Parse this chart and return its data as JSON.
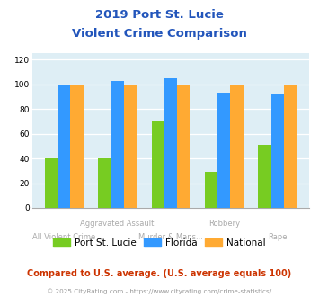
{
  "title_line1": "2019 Port St. Lucie",
  "title_line2": "Violent Crime Comparison",
  "cat_labels_row1": [
    "",
    "Aggravated Assault",
    "",
    "Robbery",
    ""
  ],
  "cat_labels_row2": [
    "All Violent Crime",
    "",
    "Murder & Mans...",
    "",
    "Rape"
  ],
  "psl_values": [
    40,
    40,
    70,
    29,
    51
  ],
  "florida_values": [
    100,
    103,
    105,
    93,
    92
  ],
  "national_values": [
    100,
    100,
    100,
    100,
    100
  ],
  "color_psl": "#77cc22",
  "color_florida": "#3399ff",
  "color_national": "#ffaa33",
  "ylabel_ticks": [
    0,
    20,
    40,
    60,
    80,
    100,
    120
  ],
  "ylim": [
    0,
    125
  ],
  "plot_bg": "#deeef5",
  "legend_labels": [
    "Port St. Lucie",
    "Florida",
    "National"
  ],
  "footnote1": "Compared to U.S. average. (U.S. average equals 100)",
  "footnote2": "© 2025 CityRating.com - https://www.cityrating.com/crime-statistics/",
  "title_color": "#2255bb",
  "footnote1_color": "#cc3300",
  "footnote2_color": "#999999",
  "xtick_color": "#aaaaaa"
}
